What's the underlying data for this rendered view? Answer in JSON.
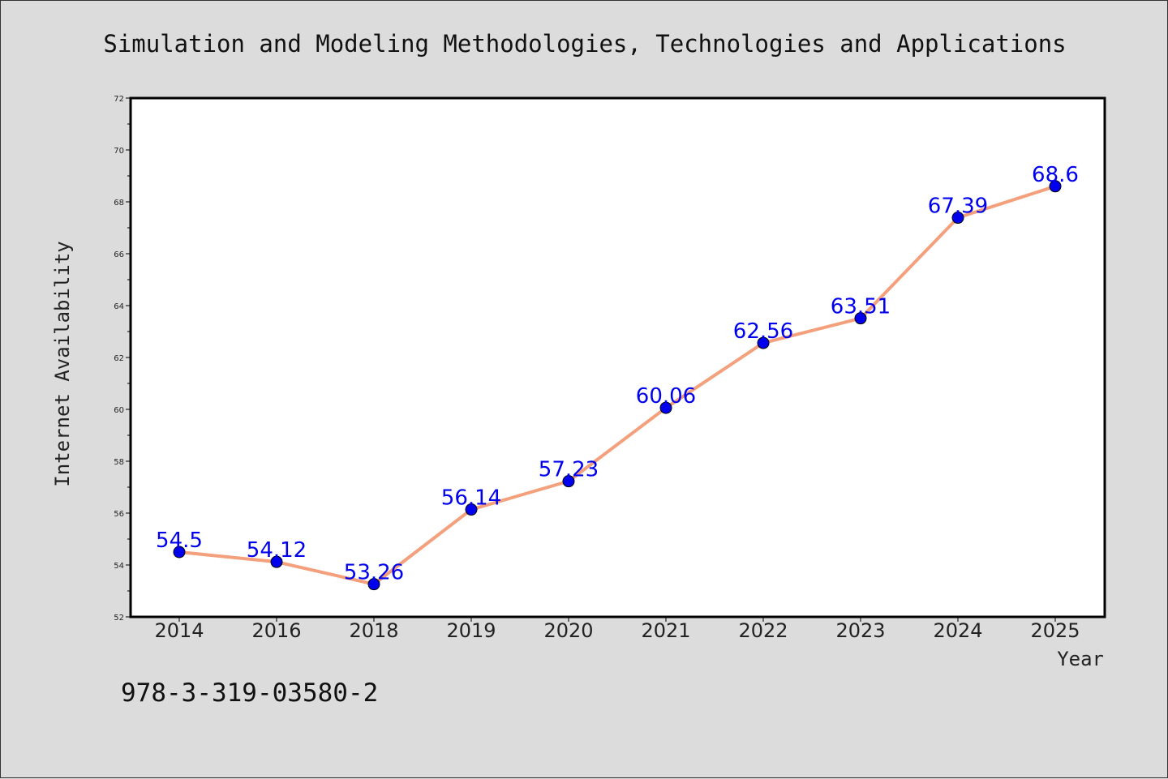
{
  "chart_data": {
    "type": "line",
    "title": "Simulation and Modeling Methodologies, Technologies and Applications",
    "xlabel": "Year",
    "ylabel": "Internet Availability",
    "categories": [
      "2014",
      "2016",
      "2018",
      "2019",
      "2020",
      "2021",
      "2022",
      "2023",
      "2024",
      "2025"
    ],
    "series": [
      {
        "values": [
          54.5,
          54.12,
          53.26,
          56.14,
          57.23,
          60.06,
          62.56,
          63.51,
          67.39,
          68.6
        ],
        "labels": [
          "54.5",
          "54.12",
          "53.26",
          "56.14",
          "57.23",
          "60.06",
          "62.56",
          "63.51",
          "67.39",
          "68.6"
        ]
      }
    ],
    "ylim": [
      52,
      72
    ],
    "yticks": [
      "52",
      "54",
      "56",
      "58",
      "60",
      "62",
      "64",
      "66",
      "68",
      "70",
      "72"
    ],
    "grid": false,
    "legend": "none",
    "colors": {
      "line": "#f4a07c",
      "marker": "#0000ee",
      "data_label": "#0000ee",
      "plot_background": "#ffffff",
      "page_background": "#dcdcdc"
    }
  },
  "footer": {
    "isbn": "978-3-319-03580-2"
  }
}
